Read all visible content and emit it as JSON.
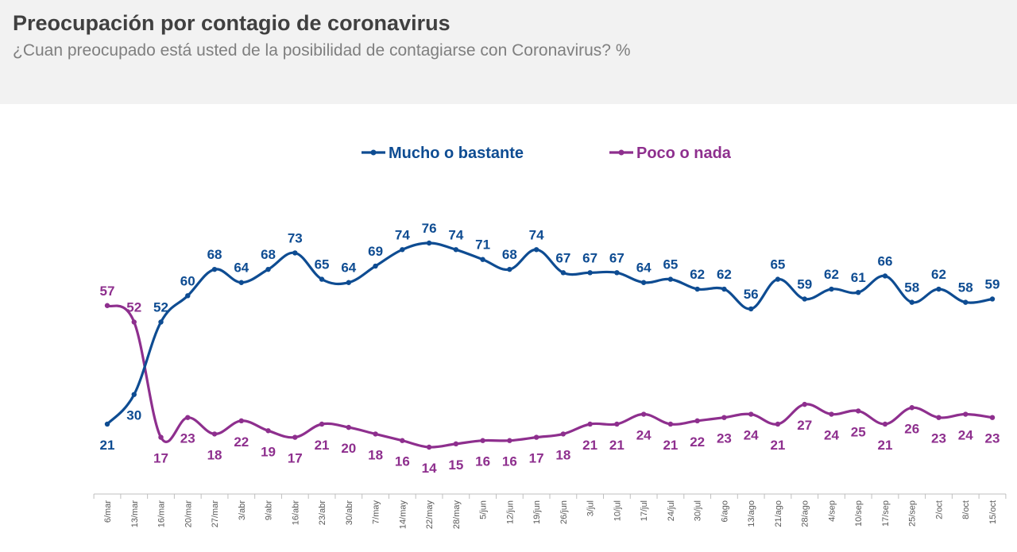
{
  "header": {
    "title": "Preocupación por contagio de coronavirus",
    "subtitle": "¿Cuan preocupado está usted de la posibilidad de contagiarse con Coronavirus? %"
  },
  "colors": {
    "series_1": "#0e4c92",
    "series_2": "#8e2f8e",
    "header_bg": "#f2f2f2"
  },
  "chart_data": {
    "type": "line",
    "title": "Preocupación por contagio de coronavirus",
    "subtitle": "¿Cuan preocupado está usted de la posibilidad de contagiarse con Coronavirus? %",
    "legend_position": "top-center",
    "grid": false,
    "ylim": [
      0,
      100
    ],
    "categories": [
      "6/mar",
      "13/mar",
      "16/mar",
      "20/mar",
      "27/mar",
      "3/abr",
      "9/abr",
      "16/abr",
      "23/abr",
      "30/abr",
      "7/may",
      "14/may",
      "22/may",
      "28/may",
      "5/jun",
      "12/jun",
      "19/jun",
      "26/jun",
      "3/jul",
      "10/jul",
      "17/jul",
      "24/jul",
      "30/jul",
      "6/ago",
      "13/ago",
      "21/ago",
      "28/ago",
      "4/sep",
      "10/sep",
      "17/sep",
      "25/sep",
      "2/oct",
      "8/oct",
      "15/oct"
    ],
    "series": [
      {
        "name": "Mucho o bastante",
        "color": "#0e4c92",
        "values": [
          21,
          30,
          52,
          60,
          68,
          64,
          68,
          73,
          65,
          64,
          69,
          74,
          76,
          74,
          71,
          68,
          74,
          67,
          67,
          67,
          64,
          65,
          62,
          62,
          56,
          65,
          59,
          62,
          61,
          66,
          58,
          62,
          58,
          59
        ]
      },
      {
        "name": "Poco o nada",
        "color": "#8e2f8e",
        "values": [
          57,
          52,
          17,
          23,
          18,
          22,
          19,
          17,
          21,
          20,
          18,
          16,
          14,
          15,
          16,
          16,
          17,
          18,
          21,
          21,
          24,
          21,
          22,
          23,
          24,
          21,
          27,
          24,
          25,
          21,
          26,
          23,
          24,
          23
        ]
      }
    ]
  }
}
